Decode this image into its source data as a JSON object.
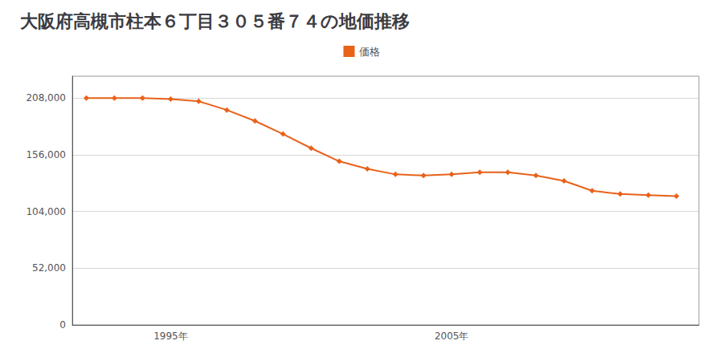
{
  "chart_data": {
    "type": "line",
    "title": "大阪府高槻市柱本６丁目３０５番７４の地価推移",
    "x": [
      1992,
      1993,
      1994,
      1995,
      1996,
      1997,
      1998,
      1999,
      2000,
      2001,
      2002,
      2003,
      2004,
      2005,
      2006,
      2007,
      2008,
      2009,
      2010,
      2011,
      2012,
      2013
    ],
    "series": [
      {
        "name": "価格",
        "color": "#e8621a",
        "values": [
          208000,
          208000,
          208000,
          207000,
          205000,
          197000,
          187000,
          175000,
          162000,
          150000,
          143000,
          138000,
          137000,
          138000,
          140000,
          140000,
          137000,
          132000,
          123000,
          120000,
          119000,
          118000
        ]
      }
    ],
    "xlim": [
      1991.5,
      2013.8
    ],
    "xticks": [
      {
        "value": 1995,
        "label": "1995年"
      },
      {
        "value": 2005,
        "label": "2005年"
      }
    ],
    "ylim": [
      0,
      228000
    ],
    "yticks": [
      0,
      {
        "value": 52000,
        "label": "52,000"
      },
      {
        "value": 104000,
        "label": "104,000"
      },
      {
        "value": 156000,
        "label": "156,000"
      },
      {
        "value": 208000,
        "label": "208,000"
      }
    ],
    "grid": true,
    "legend": "top",
    "marker": "diamond"
  }
}
